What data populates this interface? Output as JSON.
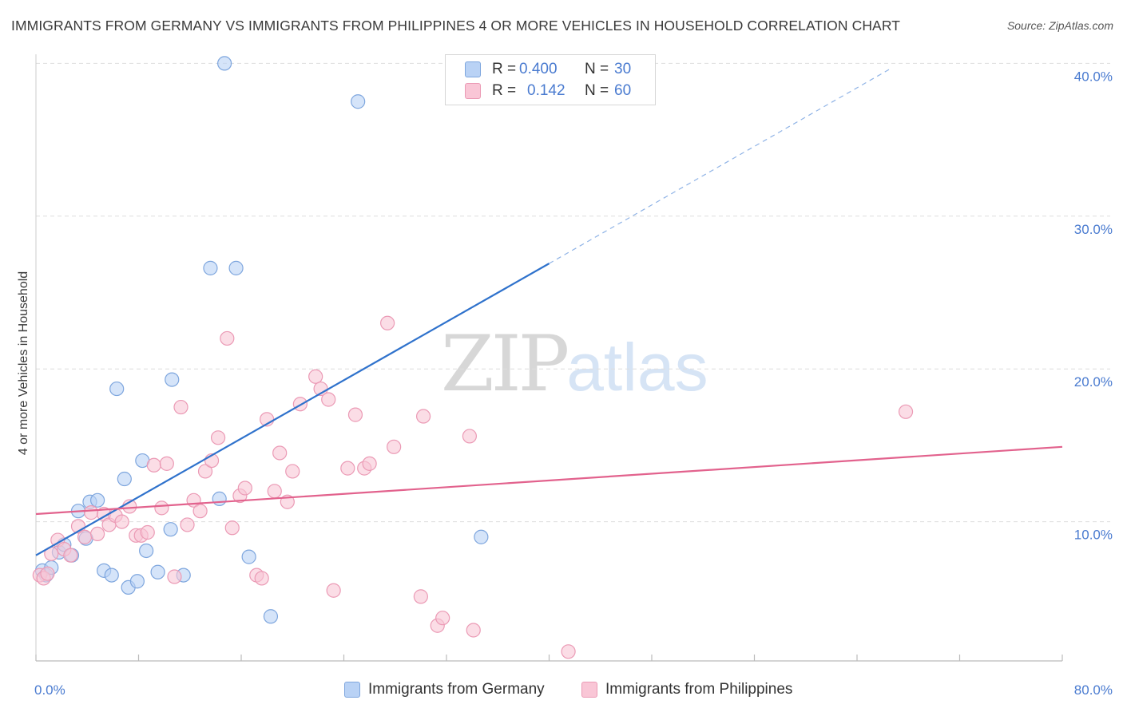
{
  "title": "IMMIGRANTS FROM GERMANY VS IMMIGRANTS FROM PHILIPPINES 4 OR MORE VEHICLES IN HOUSEHOLD CORRELATION CHART",
  "source": "Source: ZipAtlas.com",
  "watermark": {
    "zip": "ZIP",
    "atlas": "atlas"
  },
  "stats": {
    "germany": {
      "r_label": "R =",
      "r": "0.400",
      "n_label": "N =",
      "n": "30"
    },
    "philippines": {
      "r_label": "R =",
      "r": "0.142",
      "n_label": "N =",
      "n": "60"
    }
  },
  "legend": {
    "germany": "Immigrants from Germany",
    "philippines": "Immigrants from Philippines"
  },
  "colors": {
    "germany_fill": "#b9d2f5",
    "germany_stroke": "#7ea6de",
    "germany_line": "#2f72cc",
    "philippines_fill": "#f9c6d6",
    "philippines_stroke": "#eb9ab5",
    "philippines_line": "#e2628d",
    "tick_text": "#4a7bd0",
    "grid": "#dddddd"
  },
  "chart_data": {
    "type": "scatter",
    "title": "IMMIGRANTS FROM GERMANY VS IMMIGRANTS FROM PHILIPPINES 4 OR MORE VEHICLES IN HOUSEHOLD CORRELATION CHART",
    "xlabel": "",
    "ylabel": "4 or more Vehicles in Household",
    "xlim": [
      0,
      80
    ],
    "ylim": [
      0,
      42
    ],
    "x_tick_labels": [
      "0.0%",
      "80.0%"
    ],
    "y_ticks": [
      10,
      20,
      30,
      40
    ],
    "y_tick_labels": [
      "10.0%",
      "20.0%",
      "30.0%",
      "40.0%"
    ],
    "series": [
      {
        "name": "Immigrants from Germany",
        "points": [
          [
            0.5,
            6.8
          ],
          [
            0.8,
            6.5
          ],
          [
            1.2,
            7.0
          ],
          [
            1.8,
            8.0
          ],
          [
            2.2,
            8.5
          ],
          [
            2.8,
            7.8
          ],
          [
            3.3,
            10.7
          ],
          [
            3.9,
            8.9
          ],
          [
            4.2,
            11.3
          ],
          [
            4.8,
            11.4
          ],
          [
            5.3,
            6.8
          ],
          [
            5.9,
            6.5
          ],
          [
            6.3,
            18.7
          ],
          [
            6.9,
            12.8
          ],
          [
            7.2,
            5.7
          ],
          [
            7.9,
            6.1
          ],
          [
            8.3,
            14.0
          ],
          [
            8.6,
            8.1
          ],
          [
            9.5,
            6.7
          ],
          [
            10.5,
            9.5
          ],
          [
            10.6,
            19.3
          ],
          [
            11.5,
            6.5
          ],
          [
            13.6,
            26.6
          ],
          [
            14.3,
            11.5
          ],
          [
            14.7,
            40.0
          ],
          [
            15.6,
            26.6
          ],
          [
            16.6,
            7.7
          ],
          [
            18.3,
            3.8
          ],
          [
            25.1,
            37.5
          ],
          [
            34.7,
            9.0
          ]
        ],
        "trend": {
          "x0": 0,
          "y0": 7.8,
          "x1": 40,
          "y1": 26.9,
          "dashed_to_x": 66.5,
          "dashed_to_y": 39.6
        }
      },
      {
        "name": "Immigrants from Philippines",
        "points": [
          [
            0.3,
            6.5
          ],
          [
            0.6,
            6.3
          ],
          [
            0.9,
            6.6
          ],
          [
            1.2,
            7.9
          ],
          [
            1.7,
            8.8
          ],
          [
            2.2,
            8.2
          ],
          [
            2.7,
            7.8
          ],
          [
            3.3,
            9.7
          ],
          [
            3.8,
            9.0
          ],
          [
            4.3,
            10.6
          ],
          [
            4.8,
            9.2
          ],
          [
            5.3,
            10.5
          ],
          [
            5.7,
            9.8
          ],
          [
            6.2,
            10.4
          ],
          [
            6.7,
            10.0
          ],
          [
            7.3,
            11.0
          ],
          [
            7.8,
            9.1
          ],
          [
            8.2,
            9.1
          ],
          [
            8.7,
            9.3
          ],
          [
            9.2,
            13.7
          ],
          [
            9.8,
            10.9
          ],
          [
            10.2,
            13.8
          ],
          [
            10.8,
            6.4
          ],
          [
            11.3,
            17.5
          ],
          [
            11.8,
            9.8
          ],
          [
            12.3,
            11.4
          ],
          [
            12.8,
            10.7
          ],
          [
            13.2,
            13.3
          ],
          [
            13.7,
            14.0
          ],
          [
            14.2,
            15.5
          ],
          [
            14.9,
            22.0
          ],
          [
            15.3,
            9.6
          ],
          [
            15.9,
            11.7
          ],
          [
            16.3,
            12.2
          ],
          [
            17.2,
            6.5
          ],
          [
            17.6,
            6.3
          ],
          [
            18.0,
            16.7
          ],
          [
            18.6,
            12.0
          ],
          [
            19.0,
            14.5
          ],
          [
            19.6,
            11.3
          ],
          [
            20.0,
            13.3
          ],
          [
            20.6,
            17.7
          ],
          [
            21.8,
            19.5
          ],
          [
            22.2,
            18.7
          ],
          [
            22.8,
            18.0
          ],
          [
            23.2,
            5.5
          ],
          [
            24.3,
            13.5
          ],
          [
            24.9,
            17.0
          ],
          [
            25.6,
            13.5
          ],
          [
            26.0,
            13.8
          ],
          [
            27.4,
            23.0
          ],
          [
            27.9,
            14.9
          ],
          [
            30.0,
            5.1
          ],
          [
            30.2,
            16.9
          ],
          [
            31.3,
            3.2
          ],
          [
            31.7,
            3.7
          ],
          [
            33.8,
            15.6
          ],
          [
            34.1,
            2.9
          ],
          [
            41.5,
            1.5
          ],
          [
            67.8,
            17.2
          ]
        ],
        "trend": {
          "x0": 0,
          "y0": 10.5,
          "x1": 80,
          "y1": 14.9
        }
      }
    ]
  }
}
